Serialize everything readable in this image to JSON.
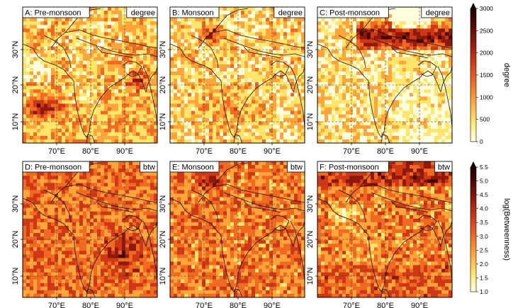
{
  "colormap": [
    "#ffffe0",
    "#ffe66a",
    "#ffa53a",
    "#f06a22",
    "#cf3816",
    "#8f1a0c",
    "#4a0704",
    "#1a0000"
  ],
  "x_ticks": [
    "70°E",
    "80°E",
    "90°E"
  ],
  "y_ticks": [
    "30°N",
    "20°N",
    "10°N"
  ],
  "panels": [
    {
      "label": "A: Pre-monsoon",
      "unit": "degree"
    },
    {
      "label": "B: Monsoon",
      "unit": "degree"
    },
    {
      "label": "C: Post-monsoon",
      "unit": "degree"
    },
    {
      "label": "D: Pre-monsoon",
      "unit": "btw"
    },
    {
      "label": "E: Monsoon",
      "unit": "btw"
    },
    {
      "label": "F: Post-monsoon",
      "unit": "btw"
    }
  ],
  "colorbars": [
    {
      "title": "degree",
      "ticks": [
        "3000",
        "2500",
        "2000",
        "1500",
        "1000",
        "500",
        "0"
      ]
    },
    {
      "title": "log(Betweenness)",
      "ticks": [
        "5.5",
        "5.0",
        "4.5",
        "4.0",
        "3.5",
        "3.0",
        "2.5",
        "2.0",
        "1.5",
        "1.0"
      ]
    }
  ]
}
